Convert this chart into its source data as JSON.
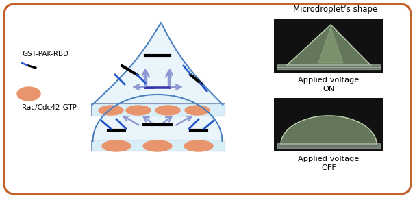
{
  "background_color": "#ffffff",
  "border_color": "#c0602a",
  "title_text": "Microdroplet’s shape",
  "label_gst": "GST-PAK-RBD",
  "label_rac": "Rac/Cdc42-GTP",
  "label_on": "Applied voltage\nON",
  "label_off": "Applied voltage\nOFF",
  "plate_color": "#daeef8",
  "plate_border": "#aaaacc",
  "droplet_fill": "#daeef8",
  "droplet_border": "#4a7fc0",
  "ellipse_color": "#e8956d",
  "arrow_color": "#3333aa",
  "photo_bg": "#111111"
}
